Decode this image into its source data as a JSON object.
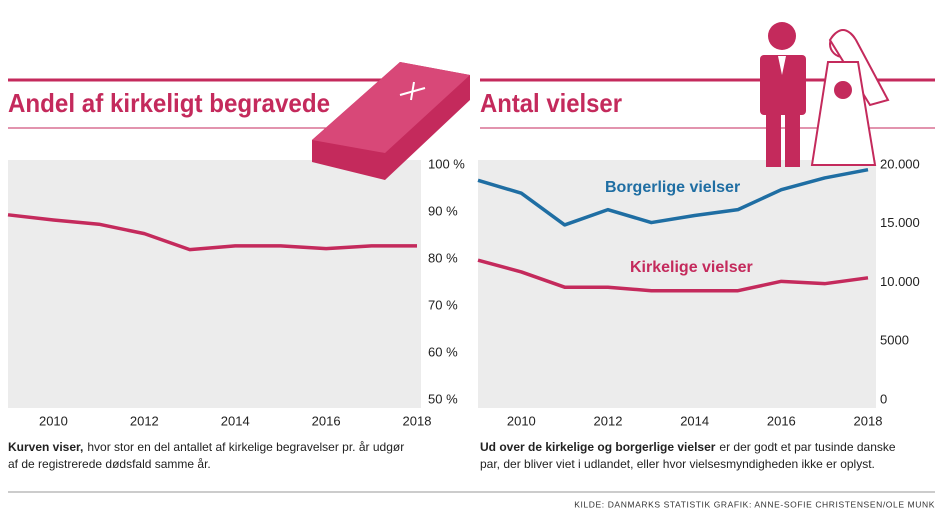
{
  "chart_data": [
    {
      "type": "line",
      "title": "Andel af kirkeligt begravede",
      "x": [
        2009,
        2010,
        2011,
        2012,
        2013,
        2014,
        2015,
        2016,
        2017,
        2018
      ],
      "values": [
        89.4,
        88.3,
        87.4,
        85.4,
        82.0,
        82.8,
        82.8,
        82.2,
        82.8,
        82.8
      ],
      "color": "#c42a5c",
      "xlim": [
        2009,
        2018
      ],
      "xticks": [
        2010,
        2012,
        2014,
        2016,
        2018
      ],
      "ylim": [
        50,
        100
      ],
      "yticks": [
        {
          "value": 50,
          "label": "50 %"
        },
        {
          "value": 60,
          "label": "60 %"
        },
        {
          "value": 70,
          "label": "70 %"
        },
        {
          "value": 80,
          "label": "80 %"
        },
        {
          "value": 90,
          "label": "90 %"
        },
        {
          "value": 100,
          "label": "100 %"
        }
      ],
      "grid": false,
      "caption_bold": "Kurven viser,",
      "caption_lines": [
        "hvor stor en del antallet af kirkelige begravelser pr. år udgør",
        "af de registrerede dødsfald samme år."
      ]
    },
    {
      "type": "line",
      "title": "Antal vielser",
      "x": [
        2009,
        2010,
        2011,
        2012,
        2013,
        2014,
        2015,
        2016,
        2017,
        2018
      ],
      "series": [
        {
          "name": "Borgerlige vielser",
          "color": "#1f6ea3",
          "values": [
            18700,
            17600,
            14900,
            16200,
            15100,
            15700,
            16200,
            17900,
            18900,
            19600
          ]
        },
        {
          "name": "Kirkelige vielser",
          "color": "#c42a5c",
          "values": [
            11900,
            10900,
            9600,
            9600,
            9300,
            9300,
            9300,
            10100,
            9900,
            10400
          ]
        }
      ],
      "xlim": [
        2009,
        2018
      ],
      "xticks": [
        2010,
        2012,
        2014,
        2016,
        2018
      ],
      "ylim": [
        0,
        20000
      ],
      "yticks": [
        0,
        5000,
        {
          "value": 10000,
          "label": "10.000"
        },
        {
          "value": 15000,
          "label": "15.000"
        },
        {
          "value": 20000,
          "label": "20.000"
        }
      ],
      "grid": false,
      "caption_bold": "Ud over de kirkelige og borgerlige vielser",
      "caption_lines": [
        "er der godt et par tusinde danske",
        "par, der bliver viet i udlandet, eller hvor vielsesmyndigheden ikke er oplyst."
      ]
    }
  ],
  "source": "KILDE: DANMARKS STATISTIK    GRAFIK: ANNE-SOFIE CHRISTENSEN/OLE MUNK"
}
